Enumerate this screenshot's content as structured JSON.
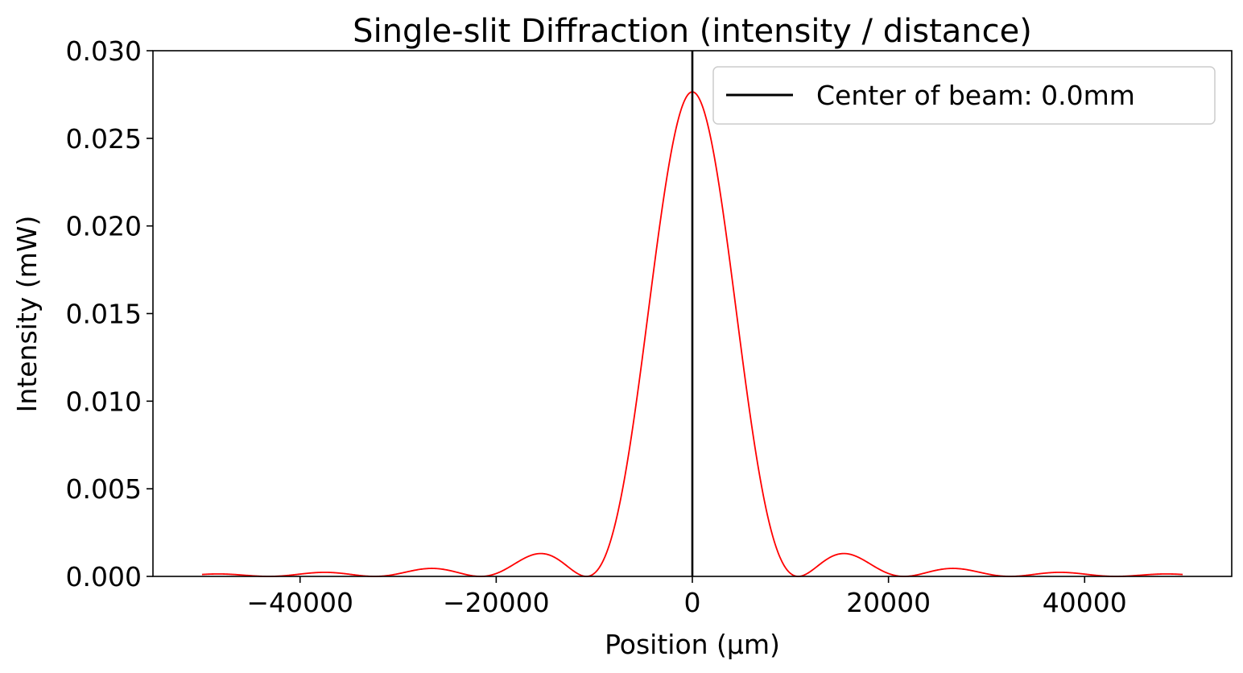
{
  "chart_data": {
    "type": "line",
    "title": "Single-slit Diffraction (intensity / distance)",
    "xlabel": "Position (μm)",
    "ylabel": "Intensity (mW)",
    "xlim": [
      -55000,
      55000
    ],
    "ylim": [
      0,
      0.03
    ],
    "xticks": [
      -40000,
      -20000,
      0,
      20000,
      40000
    ],
    "xtick_labels": [
      "−40000",
      "−20000",
      "0",
      "20000",
      "40000"
    ],
    "yticks": [
      0,
      0.005,
      0.01,
      0.015,
      0.02,
      0.025,
      0.03
    ],
    "ytick_labels": [
      "0.000",
      "0.005",
      "0.010",
      "0.015",
      "0.020",
      "0.025",
      "0.030"
    ],
    "grid": false,
    "legend": {
      "placement": "top-right",
      "entries": [
        "Center of beam: 0.0mm"
      ]
    },
    "series": [
      {
        "kind": "curve",
        "color": "#ff0000",
        "x_range": [
          -50000,
          50000
        ],
        "peak_x": 0,
        "peak_intensity": 0.02765,
        "first_zero_x": 10800,
        "secondary_peak": {
          "x": 15500,
          "intensity": 0.0013
        }
      },
      {
        "name": "Center of beam: 0.0mm",
        "kind": "vline",
        "x": 0,
        "color": "#000000"
      }
    ]
  }
}
